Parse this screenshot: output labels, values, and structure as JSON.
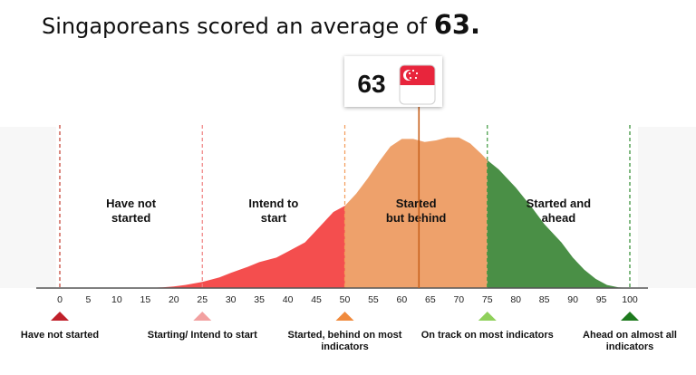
{
  "headline": {
    "text": "Singaporeans scored an average of",
    "score": "63."
  },
  "chart_data": {
    "type": "area",
    "xlim": [
      0,
      100
    ],
    "x_ticks": [
      0,
      5,
      10,
      15,
      20,
      25,
      30,
      35,
      40,
      45,
      50,
      55,
      60,
      65,
      70,
      75,
      80,
      85,
      90,
      95,
      100
    ],
    "average": {
      "value": 63,
      "label": "63",
      "flag": "singapore-flag"
    },
    "thresholds": [
      {
        "value": 0,
        "color": "#c0392b"
      },
      {
        "value": 25,
        "color": "#f08080"
      },
      {
        "value": 50,
        "color": "#f39c5a"
      },
      {
        "value": 75,
        "color": "#3f9a3f"
      },
      {
        "value": 100,
        "color": "#2e8b2e"
      }
    ],
    "distribution": {
      "x": [
        0,
        15,
        18,
        20,
        22,
        25,
        28,
        30,
        33,
        35,
        38,
        40,
        43,
        45,
        48,
        50,
        52,
        54,
        56,
        58,
        60,
        62,
        64,
        66,
        68,
        70,
        72,
        74,
        75,
        77,
        80,
        83,
        85,
        88,
        90,
        92,
        94,
        96,
        98,
        100
      ],
      "density": [
        0,
        0,
        0.005,
        0.01,
        0.02,
        0.04,
        0.07,
        0.1,
        0.14,
        0.17,
        0.2,
        0.24,
        0.3,
        0.38,
        0.5,
        0.54,
        0.62,
        0.72,
        0.83,
        0.93,
        0.98,
        0.98,
        0.96,
        0.97,
        0.99,
        0.99,
        0.95,
        0.88,
        0.84,
        0.78,
        0.66,
        0.52,
        0.42,
        0.3,
        0.2,
        0.12,
        0.06,
        0.02,
        0.005,
        0
      ]
    },
    "segments": [
      {
        "from": 0,
        "to": 50,
        "color": "#f44e4e",
        "label_lines": [
          "Have not",
          "started"
        ],
        "label_x": 12.5
      },
      {
        "from": 50,
        "to": 75,
        "color": "#eea16b",
        "label_lines": [
          "Started",
          "but behind"
        ],
        "label_x": 62.5
      },
      {
        "from": 75,
        "to": 100,
        "color": "#4a8f46",
        "label_lines": [
          "Started and",
          "ahead"
        ],
        "label_x": 87.5
      }
    ],
    "extra_region_labels": [
      {
        "label_lines": [
          "Intend to",
          "start"
        ],
        "label_x": 37.5
      }
    ],
    "legend": [
      {
        "value": 0,
        "color": "#c0202a",
        "label": "Have not started"
      },
      {
        "value": 25,
        "color": "#f2a0a0",
        "label": "Starting/ Intend to start"
      },
      {
        "value": 50,
        "color": "#f08a3c",
        "label": "Started, behind on most indicators"
      },
      {
        "value": 75,
        "color": "#8fd05a",
        "label": "On track on most indicators"
      },
      {
        "value": 100,
        "color": "#1e7a1e",
        "label": "Ahead on almost all indicators"
      }
    ]
  }
}
